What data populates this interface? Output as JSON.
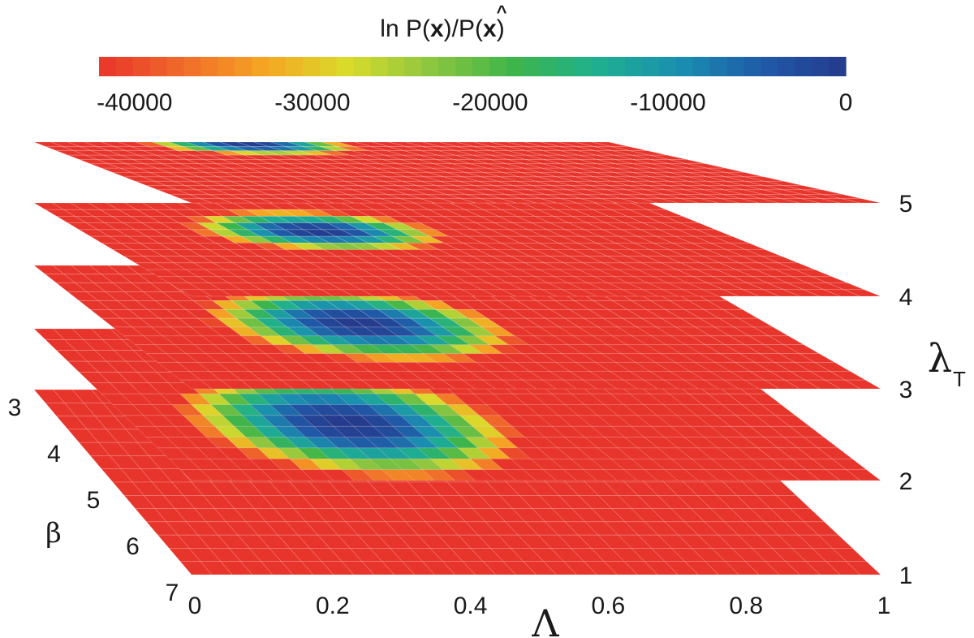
{
  "chart_data": {
    "type": "heatmap",
    "title": "ln P(x)/P(x̂)",
    "title_parts": {
      "pre": "ln P(",
      "x": "x",
      "mid": ")/P(",
      "xhat": "x",
      "hat": "^",
      "post": ")"
    },
    "colorbar": {
      "min": -42000,
      "max": 0,
      "ticks": [
        {
          "value": -40000,
          "label": "-40000"
        },
        {
          "value": -30000,
          "label": "-30000"
        },
        {
          "value": -20000,
          "label": "-20000"
        },
        {
          "value": -10000,
          "label": "-10000"
        },
        {
          "value": 0,
          "label": "0"
        }
      ],
      "colors": [
        "#e8352c",
        "#f06a2a",
        "#f5a623",
        "#d9dc2b",
        "#8cc63f",
        "#3db54a",
        "#1fb08f",
        "#1a8fb0",
        "#1f5aa8",
        "#263a8c"
      ]
    },
    "x_axis": {
      "label": "Λ",
      "range": [
        0,
        1
      ],
      "ticks": [
        {
          "value": 0,
          "label": "0"
        },
        {
          "value": 0.2,
          "label": "0.2"
        },
        {
          "value": 0.4,
          "label": "0.4"
        },
        {
          "value": 0.6,
          "label": "0.6"
        },
        {
          "value": 0.8,
          "label": "0.8"
        },
        {
          "value": 1,
          "label": "1"
        }
      ]
    },
    "y_axis": {
      "label": "β",
      "range": [
        3,
        7
      ],
      "ticks": [
        {
          "value": 3,
          "label": "3"
        },
        {
          "value": 4,
          "label": "4"
        },
        {
          "value": 5,
          "label": "5"
        },
        {
          "value": 6,
          "label": "6"
        },
        {
          "value": 7,
          "label": "7"
        }
      ]
    },
    "z_axis": {
      "label": "λ",
      "label_sub": "T",
      "ticks": [
        {
          "value": 1,
          "label": "1"
        },
        {
          "value": 2,
          "label": "2"
        },
        {
          "value": 3,
          "label": "3"
        },
        {
          "value": 4,
          "label": "4"
        },
        {
          "value": 5,
          "label": "5"
        }
      ]
    },
    "slices": [
      {
        "lambda_T": 1,
        "peak_x": 0.0,
        "peak_beta": 5.0,
        "sigma_x": 0.01,
        "sigma_beta": 0.1,
        "peak_value": -42000
      },
      {
        "lambda_T": 2,
        "peak_x": 0.32,
        "peak_beta": 5.5,
        "sigma_x": 0.16,
        "sigma_beta": 1.0,
        "peak_value": 0
      },
      {
        "lambda_T": 3,
        "peak_x": 0.38,
        "peak_beta": 4.9,
        "sigma_x": 0.15,
        "sigma_beta": 0.85,
        "peak_value": 0
      },
      {
        "lambda_T": 4,
        "peak_x": 0.37,
        "peak_beta": 4.2,
        "sigma_x": 0.13,
        "sigma_beta": 0.6,
        "peak_value": 0
      },
      {
        "lambda_T": 5,
        "peak_x": 0.36,
        "peak_beta": 3.2,
        "sigma_x": 0.12,
        "sigma_beta": 0.45,
        "peak_value": 0
      }
    ]
  }
}
